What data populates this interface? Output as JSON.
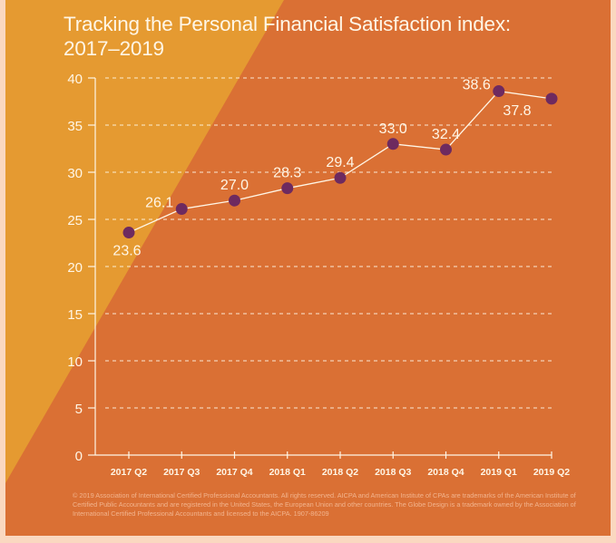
{
  "colors": {
    "background_dark": "#DA7034",
    "background_light": "#E59A31",
    "border": "#FAD8C0",
    "text": "#FFF6E6",
    "marker": "#6E2A5F",
    "line": "#FFF6E6"
  },
  "title": "Tracking the Personal Financial Satisfaction index:",
  "title_line2": "2017–2019",
  "footer": "© 2019 Association of International Certified Professional Accountants. All rights reserved. AICPA and American Institute of CPAs are trademarks of the American Institute of Certified Public Accountants and are registered in the United States, the European Union and other countries. The Globe Design is a trademark owned by the Association of International Certified Professional Accountants and licensed to the AICPA. 1907-86209",
  "chart_data": {
    "type": "line",
    "title": "Tracking the Personal Financial Satisfaction index: 2017–2019",
    "xlabel": "",
    "ylabel": "",
    "categories": [
      "2017 Q2",
      "2017 Q3",
      "2017 Q4",
      "2018 Q1",
      "2018 Q2",
      "2018 Q3",
      "2018 Q4",
      "2019 Q1",
      "2019 Q2"
    ],
    "series": [
      {
        "name": "Personal Financial Satisfaction index",
        "values": [
          23.6,
          26.1,
          27.0,
          28.3,
          29.4,
          33.0,
          32.4,
          38.6,
          37.8
        ],
        "labels": [
          "23.6",
          "26.1",
          "27.0",
          "28.3",
          "29.4",
          "33.0",
          "32.4",
          "38.6",
          "37.8"
        ],
        "label_positions": [
          "below",
          "left",
          "above",
          "above",
          "above",
          "above",
          "above",
          "left",
          "below"
        ]
      }
    ],
    "ylim": [
      0,
      40
    ],
    "yticks": [
      0,
      5,
      10,
      15,
      20,
      25,
      30,
      35,
      40
    ],
    "ytick_labels": [
      "0",
      "5",
      "10",
      "15",
      "20",
      "25",
      "30",
      "35",
      "40"
    ],
    "grid": true,
    "legend": "none"
  }
}
